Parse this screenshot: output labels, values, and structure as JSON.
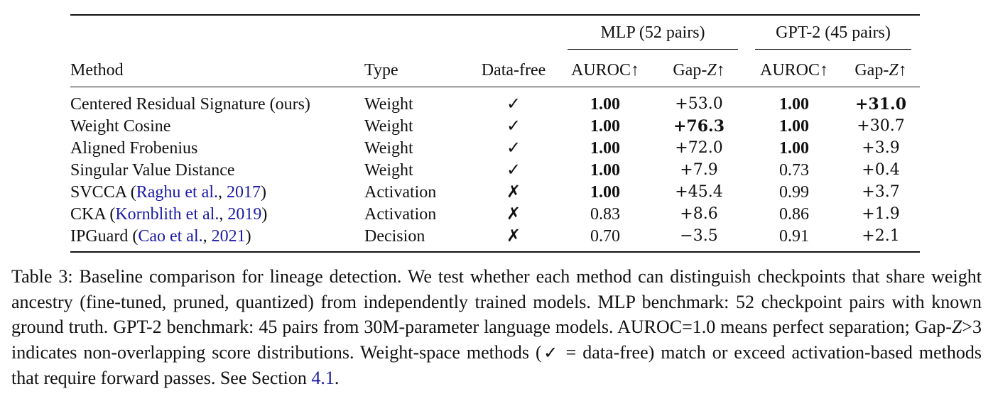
{
  "table": {
    "groups": [
      {
        "label": "MLP (52 pairs)"
      },
      {
        "label": "GPT-2 (45 pairs)"
      }
    ],
    "headers": {
      "method": "Method",
      "type": "Type",
      "data_free": "Data-free",
      "mlp_auroc": "AUROC↑",
      "mlp_gapz_prefix": "Gap-",
      "mlp_gapz_var": "Z",
      "mlp_gapz_suffix": "↑",
      "gpt_auroc": "AUROC↑",
      "gpt_gapz_prefix": "Gap-",
      "gpt_gapz_var": "Z",
      "gpt_gapz_suffix": "↑"
    },
    "rows": [
      {
        "method": "Centered Residual Signature (ours)",
        "cite": "",
        "cite_year": "",
        "cite_close": "",
        "type": "Weight",
        "data_free": "✓",
        "mlp_auroc": "1.00",
        "mlp_gapz": "+53.0",
        "gpt_auroc": "1.00",
        "gpt_gapz": "+31.0"
      },
      {
        "method": "Weight Cosine",
        "cite": "",
        "cite_year": "",
        "cite_close": "",
        "type": "Weight",
        "data_free": "✓",
        "mlp_auroc": "1.00",
        "mlp_gapz": "+76.3",
        "gpt_auroc": "1.00",
        "gpt_gapz": "+30.7"
      },
      {
        "method": "Aligned Frobenius",
        "cite": "",
        "cite_year": "",
        "cite_close": "",
        "type": "Weight",
        "data_free": "✓",
        "mlp_auroc": "1.00",
        "mlp_gapz": "+72.0",
        "gpt_auroc": "1.00",
        "gpt_gapz": "+3.9"
      },
      {
        "method": "Singular Value Distance",
        "cite": "",
        "cite_year": "",
        "cite_close": "",
        "type": "Weight",
        "data_free": "✓",
        "mlp_auroc": "1.00",
        "mlp_gapz": "+7.9",
        "gpt_auroc": "0.73",
        "gpt_gapz": "+0.4"
      },
      {
        "method": "SVCCA (",
        "cite": "Raghu et al.",
        "cite_year": "2017",
        "cite_close": ")",
        "type": "Activation",
        "data_free": "✗",
        "mlp_auroc": "1.00",
        "mlp_gapz": "+45.4",
        "gpt_auroc": "0.99",
        "gpt_gapz": "+3.7"
      },
      {
        "method": "CKA (",
        "cite": "Kornblith et al.",
        "cite_year": "2019",
        "cite_close": ")",
        "type": "Activation",
        "data_free": "✗",
        "mlp_auroc": "0.83",
        "mlp_gapz": "+8.6",
        "gpt_auroc": "0.86",
        "gpt_gapz": "+1.9"
      },
      {
        "method": "IPGuard (",
        "cite": "Cao et al.",
        "cite_year": "2021",
        "cite_close": ")",
        "type": "Decision",
        "data_free": "✗",
        "mlp_auroc": "0.70",
        "mlp_gapz": "−3.5",
        "gpt_auroc": "0.91",
        "gpt_gapz": "+2.1"
      }
    ]
  },
  "caption": {
    "part1": "Table 3: Baseline comparison for lineage detection. We test whether each method can distinguish checkpoints that share weight ancestry (fine-tuned, pruned, quantized) from independently trained models. MLP benchmark: 52 checkpoint pairs with known ground truth. GPT-2 benchmark: 45 pairs from 30M-parameter language models. AUROC=1.0 means perfect separation; Gap-",
    "var": "Z",
    "part2": ">3 indicates non-overlapping score distributions. Weight-space methods (",
    "check": "✓",
    "part3": " = data-free) match or exceed activation-based methods that require forward passes. See Section ",
    "ref": "4.1",
    "part4": "."
  }
}
